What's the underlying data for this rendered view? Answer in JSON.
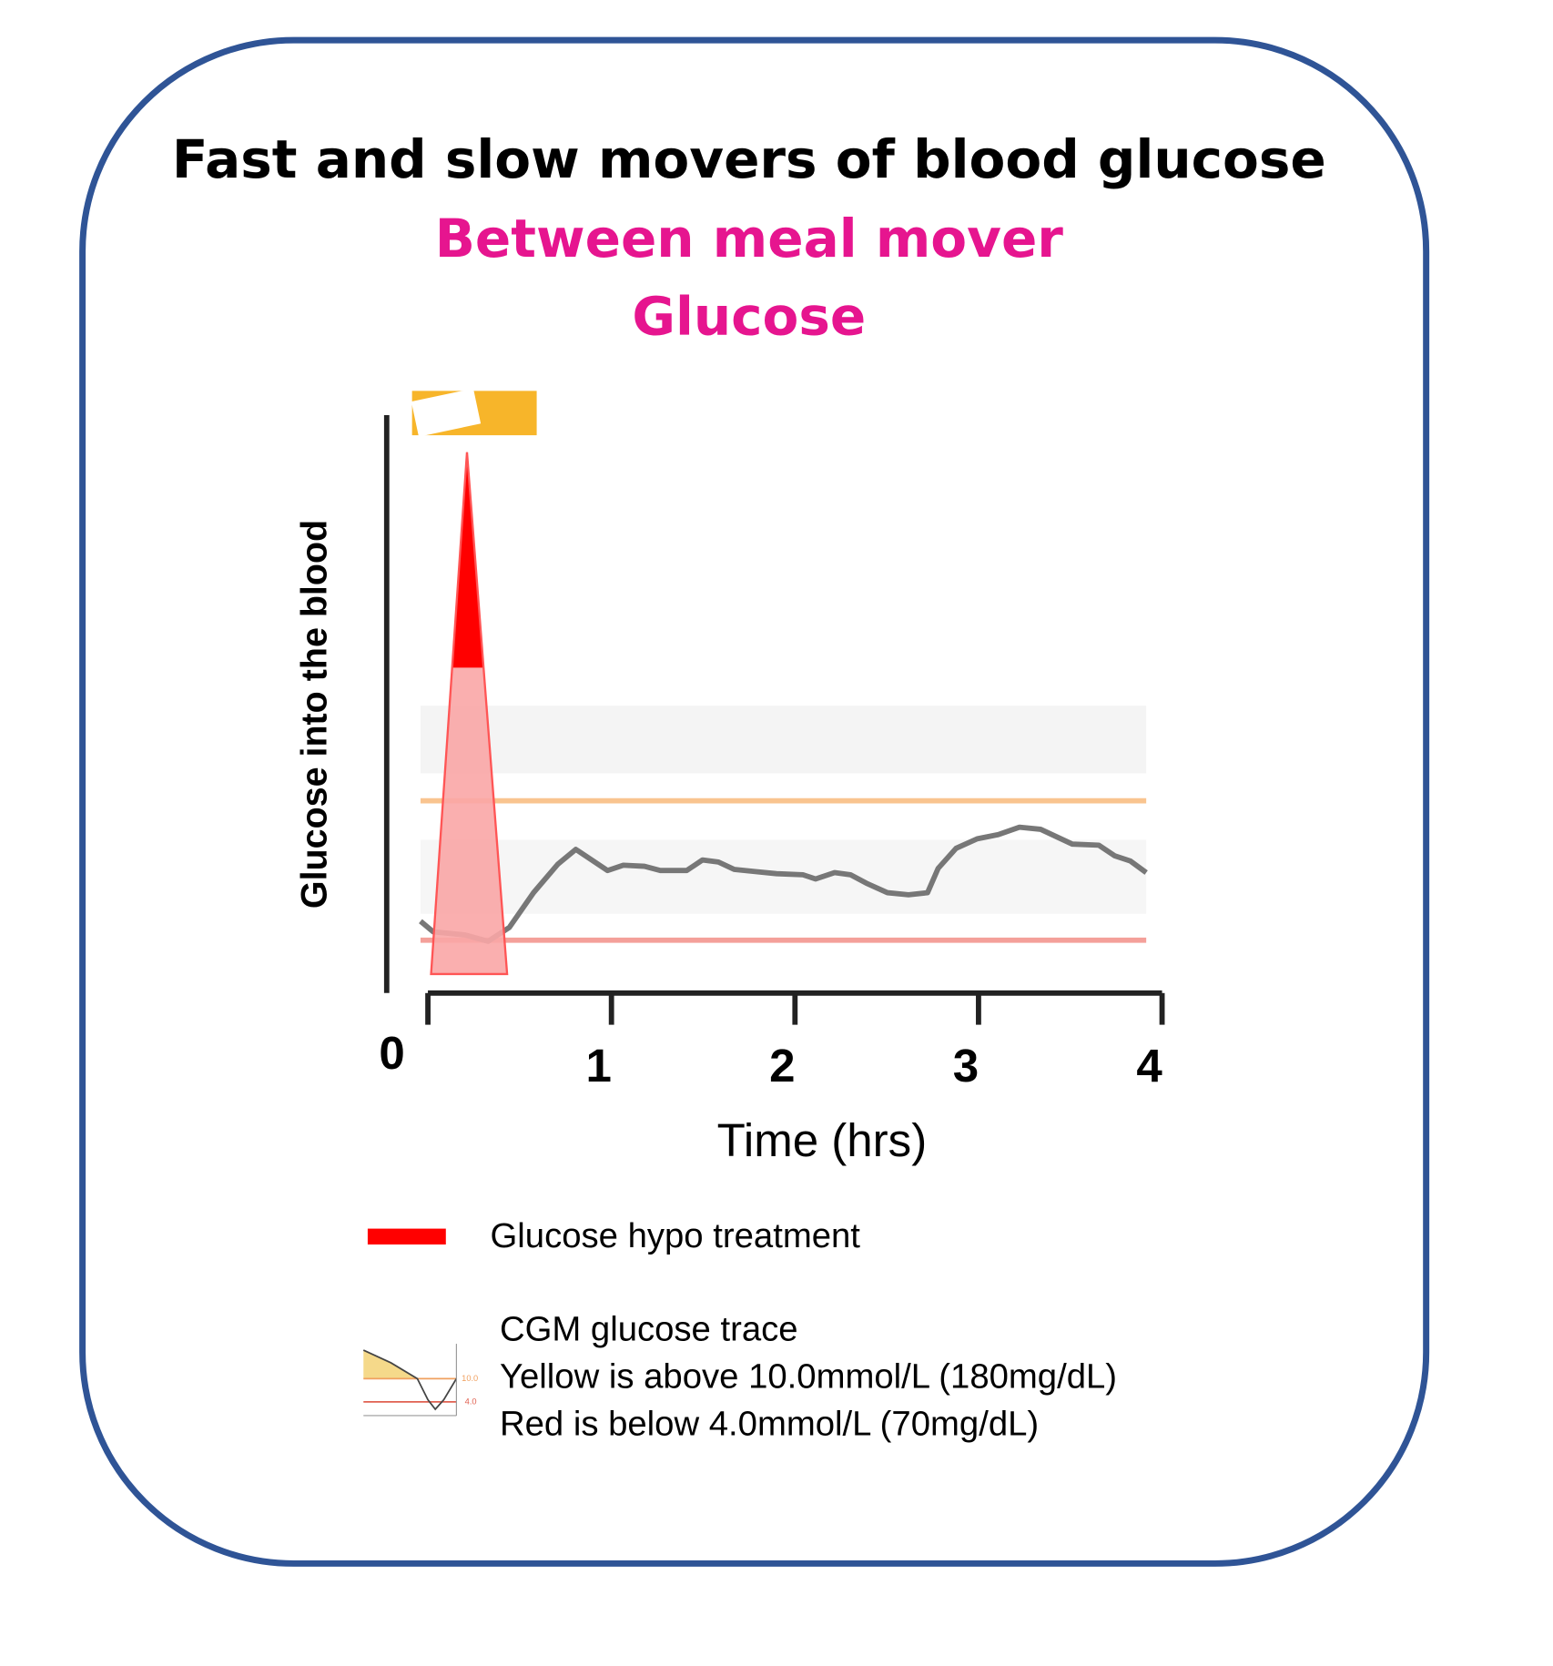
{
  "chart_data": {
    "type": "line",
    "title": "Fast and slow movers of blood  glucose",
    "subtitle": [
      "Between meal mover",
      "Glucose"
    ],
    "x_label": "Time (hrs)",
    "y_label": "Glucose into the blood",
    "xlim": [
      0,
      4
    ],
    "xticks": [
      0,
      1,
      2,
      3,
      4
    ],
    "legend": [
      {
        "name": "Glucose hypo treatment",
        "color": "#ff0000"
      },
      {
        "name": [
          "CGM glucose trace",
          "Yellow is above 10.0mmol/L (180mg/dL)",
          "Red is below 4.0mmol/L (70mg/dL)"
        ],
        "icon_labels": [
          "10.0",
          "4.0"
        ]
      }
    ]
  }
}
